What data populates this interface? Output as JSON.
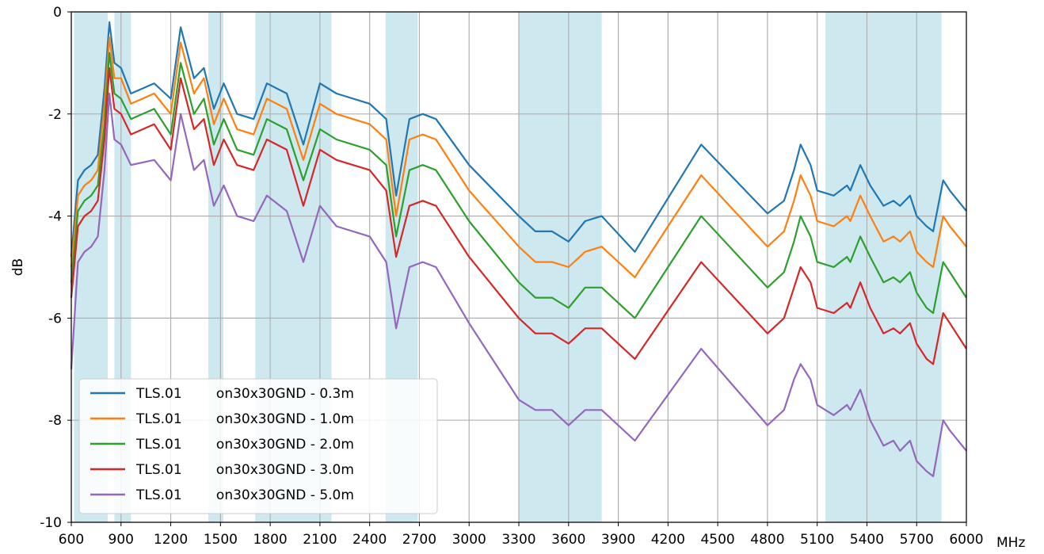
{
  "chart_data": {
    "type": "line",
    "title": "",
    "xlabel": "",
    "ylabel": "dB",
    "x_unit": "MHz",
    "xlim": [
      600,
      6000
    ],
    "ylim": [
      -10,
      0
    ],
    "x_ticks": [
      600,
      900,
      1200,
      1500,
      1800,
      2100,
      2400,
      2700,
      3000,
      3300,
      3600,
      3900,
      4200,
      4500,
      4800,
      5100,
      5400,
      5700,
      6000
    ],
    "y_ticks": [
      0,
      -2,
      -4,
      -6,
      -8,
      -10
    ],
    "y_tick_labels": [
      "0",
      "-2",
      "-4",
      "-6",
      "-8",
      "-10"
    ],
    "grid": true,
    "legend_position": "bottom-left",
    "shaded_bands": [
      [
        617,
        820
      ],
      [
        860,
        960
      ],
      [
        1427,
        1518
      ],
      [
        1710,
        2170
      ],
      [
        2496,
        2690
      ],
      [
        3300,
        3800
      ],
      [
        5150,
        5850
      ]
    ],
    "band_color": "#add8e6",
    "x": [
      600,
      640,
      680,
      720,
      760,
      800,
      830,
      860,
      900,
      960,
      1100,
      1200,
      1260,
      1340,
      1400,
      1460,
      1520,
      1600,
      1700,
      1780,
      1900,
      2000,
      2100,
      2200,
      2400,
      2500,
      2560,
      2640,
      2720,
      2800,
      3000,
      3300,
      3400,
      3500,
      3600,
      3700,
      3800,
      4000,
      4400,
      4800,
      4900,
      4960,
      5000,
      5060,
      5100,
      5200,
      5280,
      5300,
      5360,
      5420,
      5500,
      5560,
      5600,
      5660,
      5700,
      5760,
      5800,
      5860,
      5900,
      6000
    ],
    "series": [
      {
        "name": "TLS.01        on30x30GND - 0.3m",
        "color": "#1f77b4",
        "values": [
          -4.8,
          -3.3,
          -3.1,
          -3.0,
          -2.8,
          -1.5,
          -0.2,
          -1.0,
          -1.1,
          -1.6,
          -1.4,
          -1.7,
          -0.3,
          -1.3,
          -1.1,
          -1.9,
          -1.4,
          -2.0,
          -2.1,
          -1.4,
          -1.6,
          -2.6,
          -1.4,
          -1.6,
          -1.8,
          -2.1,
          -3.6,
          -2.1,
          -2.0,
          -2.1,
          -3.0,
          -4.0,
          -4.3,
          -4.3,
          -4.5,
          -4.1,
          -4.0,
          -4.7,
          -2.6,
          -3.95,
          -3.7,
          -3.1,
          -2.6,
          -3.0,
          -3.5,
          -3.6,
          -3.4,
          -3.5,
          -3.0,
          -3.4,
          -3.8,
          -3.7,
          -3.8,
          -3.6,
          -4.0,
          -4.2,
          -4.3,
          -3.3,
          -3.5,
          -3.9
        ]
      },
      {
        "name": "TLS.01        on30x30GND - 1.0m",
        "color": "#ff7f0e",
        "values": [
          -5.0,
          -3.6,
          -3.4,
          -3.3,
          -3.1,
          -1.8,
          -0.5,
          -1.3,
          -1.3,
          -1.8,
          -1.6,
          -2.0,
          -0.6,
          -1.6,
          -1.3,
          -2.2,
          -1.7,
          -2.3,
          -2.4,
          -1.7,
          -1.9,
          -2.9,
          -1.8,
          -2.0,
          -2.2,
          -2.5,
          -4.0,
          -2.5,
          -2.4,
          -2.5,
          -3.5,
          -4.6,
          -4.9,
          -4.9,
          -5.0,
          -4.7,
          -4.6,
          -5.2,
          -3.2,
          -4.6,
          -4.3,
          -3.7,
          -3.2,
          -3.6,
          -4.1,
          -4.2,
          -4.0,
          -4.1,
          -3.6,
          -4.0,
          -4.5,
          -4.4,
          -4.5,
          -4.3,
          -4.7,
          -4.9,
          -5.0,
          -4.0,
          -4.2,
          -4.6
        ]
      },
      {
        "name": "TLS.01        on30x30GND - 2.0m",
        "color": "#2ca02c",
        "values": [
          -5.3,
          -3.9,
          -3.7,
          -3.6,
          -3.4,
          -2.2,
          -0.8,
          -1.6,
          -1.7,
          -2.1,
          -1.9,
          -2.4,
          -1.0,
          -2.0,
          -1.7,
          -2.6,
          -2.1,
          -2.7,
          -2.8,
          -2.1,
          -2.3,
          -3.3,
          -2.3,
          -2.5,
          -2.7,
          -3.0,
          -4.4,
          -3.1,
          -3.0,
          -3.1,
          -4.1,
          -5.3,
          -5.6,
          -5.6,
          -5.8,
          -5.4,
          -5.4,
          -6.0,
          -4.0,
          -5.4,
          -5.1,
          -4.5,
          -4.0,
          -4.4,
          -4.9,
          -5.0,
          -4.8,
          -4.9,
          -4.4,
          -4.8,
          -5.3,
          -5.2,
          -5.3,
          -5.1,
          -5.5,
          -5.8,
          -5.9,
          -4.9,
          -5.1,
          -5.6
        ]
      },
      {
        "name": "TLS.01        on30x30GND - 3.0m",
        "color": "#d62728",
        "values": [
          -5.6,
          -4.2,
          -4.0,
          -3.9,
          -3.7,
          -2.5,
          -1.1,
          -1.9,
          -2.0,
          -2.4,
          -2.2,
          -2.7,
          -1.3,
          -2.3,
          -2.1,
          -3.0,
          -2.5,
          -3.0,
          -3.1,
          -2.5,
          -2.7,
          -3.8,
          -2.7,
          -2.9,
          -3.1,
          -3.5,
          -4.8,
          -3.8,
          -3.7,
          -3.8,
          -4.8,
          -6.0,
          -6.3,
          -6.3,
          -6.5,
          -6.2,
          -6.2,
          -6.8,
          -4.9,
          -6.3,
          -6.0,
          -5.4,
          -5.0,
          -5.3,
          -5.8,
          -5.9,
          -5.7,
          -5.8,
          -5.3,
          -5.8,
          -6.3,
          -6.2,
          -6.3,
          -6.1,
          -6.5,
          -6.8,
          -6.9,
          -5.9,
          -6.1,
          -6.6
        ]
      },
      {
        "name": "TLS.01        on30x30GND - 5.0m",
        "color": "#9467bd",
        "values": [
          -7.0,
          -4.9,
          -4.7,
          -4.6,
          -4.4,
          -3.1,
          -1.6,
          -2.5,
          -2.6,
          -3.0,
          -2.9,
          -3.3,
          -2.0,
          -3.1,
          -2.9,
          -3.8,
          -3.4,
          -4.0,
          -4.1,
          -3.6,
          -3.9,
          -4.9,
          -3.8,
          -4.2,
          -4.4,
          -4.9,
          -6.2,
          -5.0,
          -4.9,
          -5.0,
          -6.1,
          -7.6,
          -7.8,
          -7.8,
          -8.1,
          -7.8,
          -7.8,
          -8.4,
          -6.6,
          -8.1,
          -7.8,
          -7.2,
          -6.9,
          -7.2,
          -7.7,
          -7.9,
          -7.7,
          -7.8,
          -7.4,
          -8.0,
          -8.5,
          -8.4,
          -8.6,
          -8.4,
          -8.8,
          -9.0,
          -9.1,
          -8.0,
          -8.2,
          -8.6
        ]
      }
    ]
  }
}
